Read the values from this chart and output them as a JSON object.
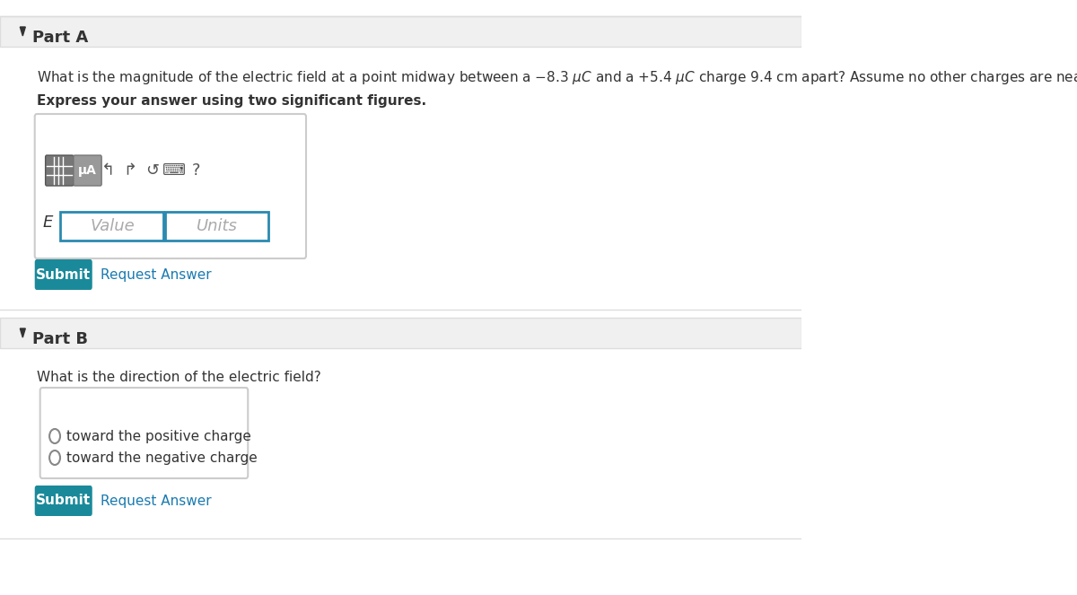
{
  "bg_color": "#ffffff",
  "header_bg": "#f0f0f0",
  "part_a_label": "Part A",
  "part_b_label": "Part B",
  "question_a": "What is the magnitude of the electric field at a point midway between a −8.3 μC and a +5.4 μC charge 9.4 cm apart? Assume no other charges are nearby.",
  "bold_a": "Express your answer using two significant figures.",
  "question_b": "What is the direction of the electric field?",
  "e_label": "E =",
  "value_placeholder": "Value",
  "units_placeholder": "Units",
  "submit_bg": "#1a8a9a",
  "submit_text": "Submit",
  "submit_text_color": "#ffffff",
  "request_answer_text": "Request Answer",
  "request_answer_color": "#1a7ab0",
  "radio_option1": "toward the positive charge",
  "radio_option2": "toward the negative charge",
  "arrow_color": "#555555",
  "border_color": "#cccccc",
  "input_border_color": "#2a8ab0",
  "toolbar_bg": "#888888",
  "mu_a_text": "μA",
  "separator_color": "#dddddd",
  "triangle_color": "#333333"
}
